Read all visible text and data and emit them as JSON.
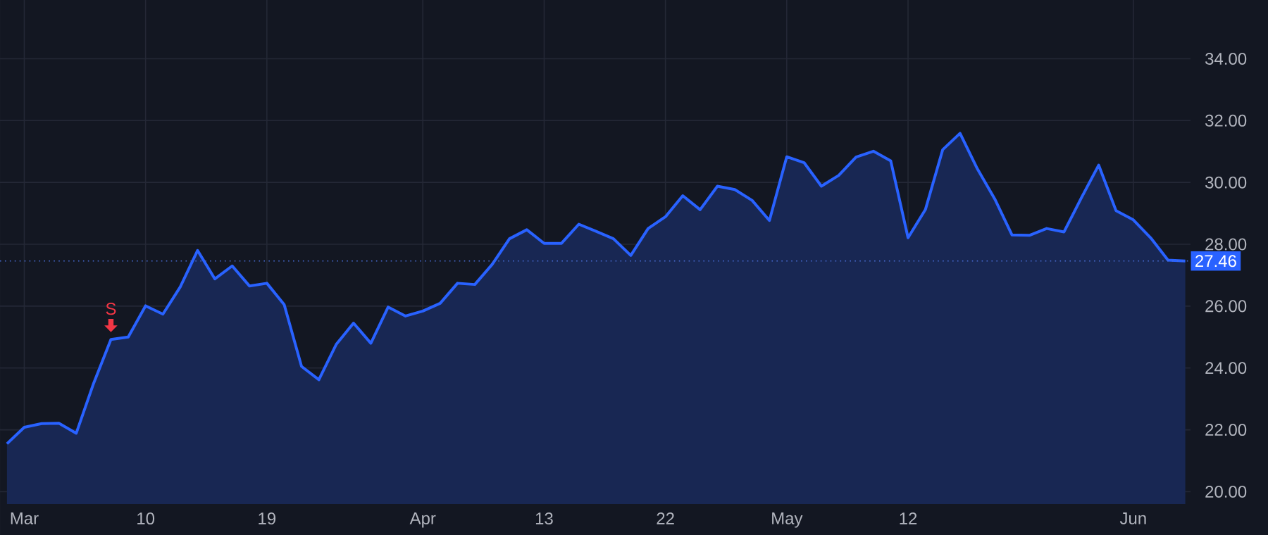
{
  "chart_data": {
    "type": "area",
    "color": "#2962ff",
    "categories": [
      null,
      "Mar",
      null,
      null,
      null,
      null,
      null,
      null,
      "10",
      null,
      null,
      null,
      null,
      null,
      null,
      "19",
      null,
      null,
      null,
      null,
      null,
      null,
      null,
      null,
      "Apr",
      null,
      null,
      null,
      null,
      null,
      null,
      "13",
      null,
      null,
      null,
      null,
      null,
      null,
      "22",
      null,
      null,
      null,
      null,
      null,
      null,
      "May",
      null,
      null,
      null,
      null,
      null,
      null,
      "12",
      null,
      null,
      null,
      null,
      null,
      null,
      null,
      null,
      null,
      null,
      null,
      null,
      "Jun",
      null,
      null,
      null
    ],
    "values": [
      21.55,
      22.08,
      22.2,
      22.21,
      21.89,
      23.5,
      24.92,
      25.0,
      26.01,
      25.74,
      26.62,
      27.8,
      26.88,
      27.3,
      26.65,
      26.74,
      26.05,
      24.05,
      23.62,
      24.76,
      25.45,
      24.8,
      25.97,
      25.68,
      25.84,
      26.09,
      26.74,
      26.7,
      27.35,
      28.18,
      28.47,
      28.03,
      28.03,
      28.65,
      28.42,
      28.18,
      27.64,
      28.51,
      28.89,
      29.57,
      29.12,
      29.88,
      29.77,
      29.42,
      28.77,
      30.83,
      30.64,
      29.88,
      30.23,
      30.82,
      31.01,
      30.7,
      28.21,
      29.12,
      31.06,
      31.59,
      30.44,
      29.47,
      28.3,
      28.29,
      28.51,
      28.4,
      29.5,
      30.56,
      29.09,
      28.79,
      28.21,
      27.49,
      27.46
    ],
    "ylim": [
      19.6,
      35.9
    ],
    "yticks": [
      {
        "value": 20,
        "label": "20.00"
      },
      {
        "value": 22,
        "label": "22.00"
      },
      {
        "value": 24,
        "label": "24.00"
      },
      {
        "value": 26,
        "label": "26.00"
      },
      {
        "value": 28,
        "label": "28.00"
      },
      {
        "value": 30,
        "label": "30.00"
      },
      {
        "value": 32,
        "label": "32.00"
      },
      {
        "value": 34,
        "label": "34.00"
      }
    ],
    "grid": true,
    "ref_lines": [
      {
        "axis": "y",
        "value": 27.46,
        "label": "27.46",
        "color": "#4a6fd8",
        "line_style": "dotted"
      }
    ],
    "annotations": [
      {
        "text": "S",
        "y": 24.92
      }
    ]
  }
}
